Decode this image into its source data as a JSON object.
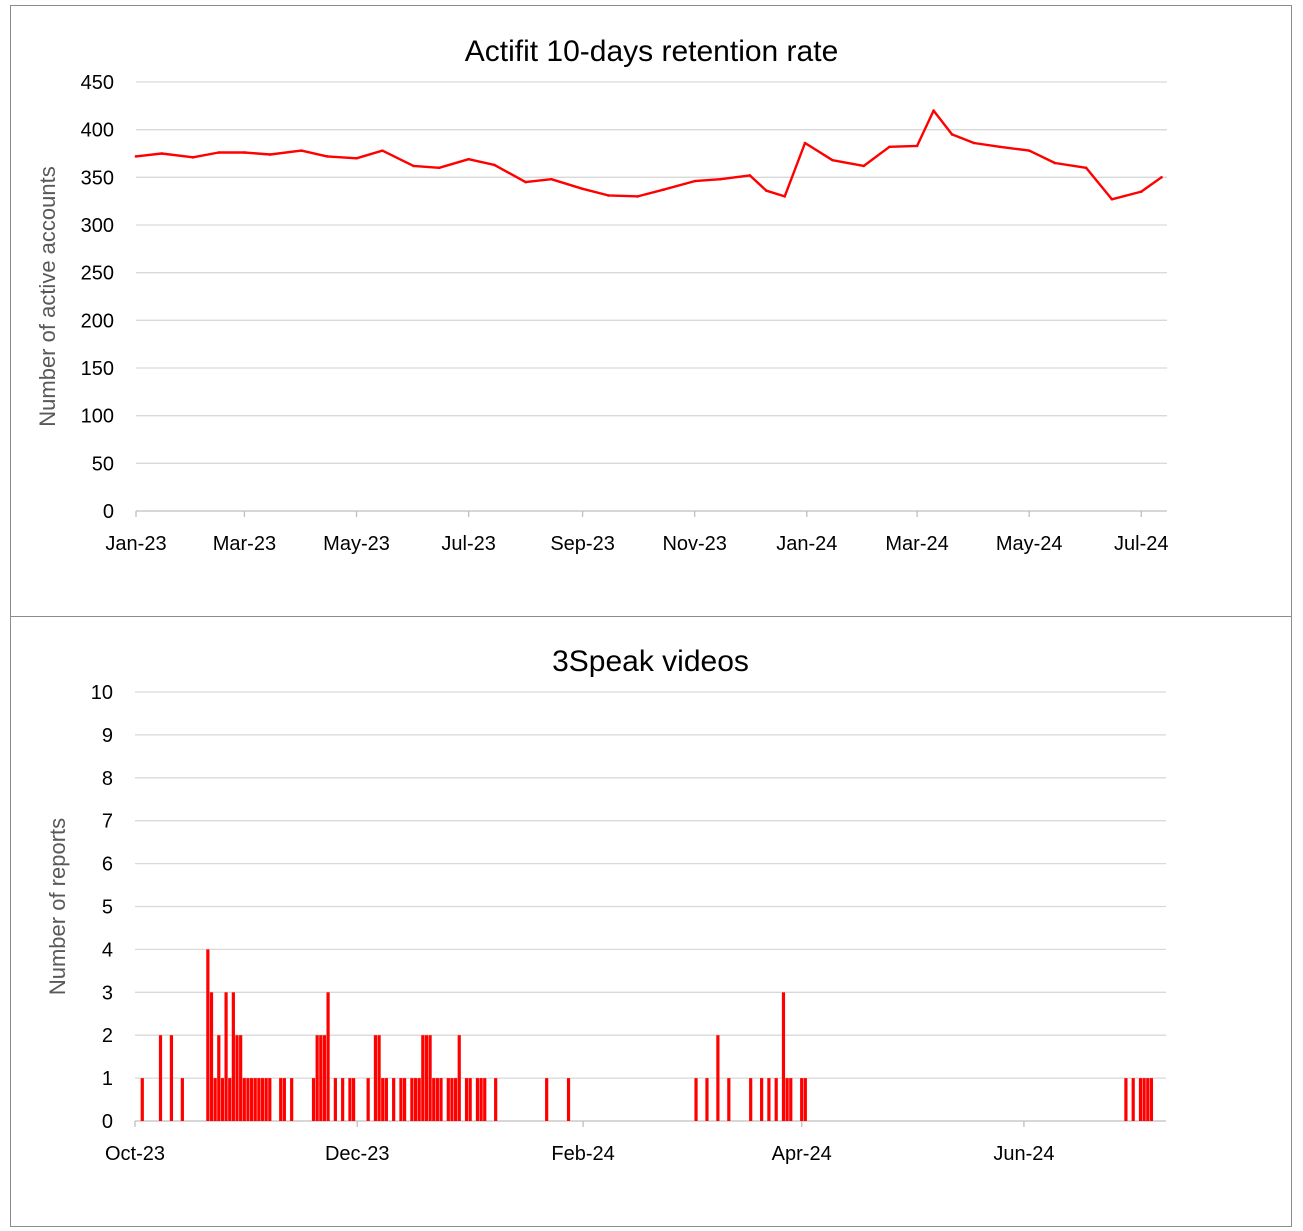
{
  "chart_data": [
    {
      "type": "line",
      "title": "Actifit 10-days retention rate",
      "xlabel": "",
      "ylabel": "Number of active accounts",
      "ylim": [
        0,
        450
      ],
      "yticks": [
        "0",
        "50",
        "100",
        "150",
        "200",
        "250",
        "300",
        "350",
        "400",
        "450"
      ],
      "xticks": [
        "Jan-23",
        "Mar-23",
        "May-23",
        "Jul-23",
        "Sep-23",
        "Nov-23",
        "Jan-24",
        "Mar-24",
        "May-24",
        "Jul-24"
      ],
      "xlim": [
        "2023-01-01",
        "2024-07-15"
      ],
      "grid": true,
      "color": "#ff0000",
      "series": [
        {
          "x": [
            "2023-01-01",
            "2023-01-15",
            "2023-02-01",
            "2023-02-15",
            "2023-03-01",
            "2023-03-15",
            "2023-04-01",
            "2023-04-15",
            "2023-05-01",
            "2023-05-15",
            "2023-06-01",
            "2023-06-15",
            "2023-07-01",
            "2023-07-15",
            "2023-08-01",
            "2023-08-15",
            "2023-09-01",
            "2023-09-15",
            "2023-10-01",
            "2023-10-15",
            "2023-11-01",
            "2023-11-15",
            "2023-12-01",
            "2023-12-10",
            "2023-12-20",
            "2023-12-31",
            "2024-01-15",
            "2024-02-01",
            "2024-02-15",
            "2024-03-01",
            "2024-03-10",
            "2024-03-20",
            "2024-04-01",
            "2024-04-15",
            "2024-05-01",
            "2024-05-15",
            "2024-06-01",
            "2024-06-15",
            "2024-07-01",
            "2024-07-12"
          ],
          "values": [
            372,
            375,
            371,
            376,
            376,
            374,
            378,
            372,
            370,
            378,
            362,
            360,
            369,
            363,
            345,
            348,
            338,
            331,
            330,
            337,
            346,
            348,
            352,
            336,
            330,
            386,
            368,
            362,
            382,
            383,
            420,
            395,
            386,
            382,
            378,
            365,
            360,
            327,
            335,
            350
          ]
        }
      ]
    },
    {
      "type": "bar",
      "title": "3Speak videos",
      "xlabel": "",
      "ylabel": "Number of reports",
      "ylim": [
        0,
        10
      ],
      "yticks": [
        "0",
        "1",
        "2",
        "3",
        "4",
        "5",
        "6",
        "7",
        "8",
        "9",
        "10"
      ],
      "xticks": [
        "Oct-23",
        "Dec-23",
        "Feb-24",
        "Apr-24",
        "Jun-24"
      ],
      "xlim": [
        "2023-10-01",
        "2024-07-10"
      ],
      "grid": true,
      "color": "#ff0000",
      "series": [
        {
          "x": [
            "2023-10-03",
            "2023-10-08",
            "2023-10-11",
            "2023-10-14",
            "2023-10-21",
            "2023-10-22",
            "2023-10-23",
            "2023-10-24",
            "2023-10-25",
            "2023-10-26",
            "2023-10-27",
            "2023-10-28",
            "2023-10-29",
            "2023-10-30",
            "2023-10-31",
            "2023-11-01",
            "2023-11-02",
            "2023-11-03",
            "2023-11-04",
            "2023-11-05",
            "2023-11-06",
            "2023-11-07",
            "2023-11-10",
            "2023-11-11",
            "2023-11-13",
            "2023-11-19",
            "2023-11-20",
            "2023-11-21",
            "2023-11-22",
            "2023-11-23",
            "2023-11-25",
            "2023-11-27",
            "2023-11-29",
            "2023-11-30",
            "2023-12-04",
            "2023-12-06",
            "2023-12-07",
            "2023-12-08",
            "2023-12-09",
            "2023-12-11",
            "2023-12-13",
            "2023-12-14",
            "2023-12-16",
            "2023-12-17",
            "2023-12-18",
            "2023-12-19",
            "2023-12-20",
            "2023-12-21",
            "2023-12-22",
            "2023-12-23",
            "2023-12-24",
            "2023-12-26",
            "2023-12-27",
            "2023-12-28",
            "2023-12-29",
            "2023-12-31",
            "2024-01-01",
            "2024-01-03",
            "2024-01-04",
            "2024-01-05",
            "2024-01-08",
            "2024-01-22",
            "2024-01-28",
            "2024-03-03",
            "2024-03-06",
            "2024-03-09",
            "2024-03-12",
            "2024-03-18",
            "2024-03-21",
            "2024-03-23",
            "2024-03-25",
            "2024-03-27",
            "2024-03-28",
            "2024-03-29",
            "2024-04-01",
            "2024-04-02",
            "2024-06-29",
            "2024-07-01",
            "2024-07-03",
            "2024-07-04",
            "2024-07-05",
            "2024-07-06"
          ],
          "values": [
            1,
            2,
            2,
            1,
            4,
            3,
            1,
            2,
            1,
            3,
            1,
            3,
            2,
            2,
            1,
            1,
            1,
            1,
            1,
            1,
            1,
            1,
            1,
            1,
            1,
            1,
            2,
            2,
            2,
            3,
            1,
            1,
            1,
            1,
            1,
            2,
            2,
            1,
            1,
            1,
            1,
            1,
            1,
            1,
            1,
            2,
            2,
            2,
            1,
            1,
            1,
            1,
            1,
            1,
            2,
            1,
            1,
            1,
            1,
            1,
            1,
            1,
            1,
            1,
            1,
            2,
            1,
            1,
            1,
            1,
            1,
            3,
            1,
            1,
            1,
            1,
            1,
            1,
            1,
            1,
            1,
            1
          ]
        }
      ]
    }
  ]
}
